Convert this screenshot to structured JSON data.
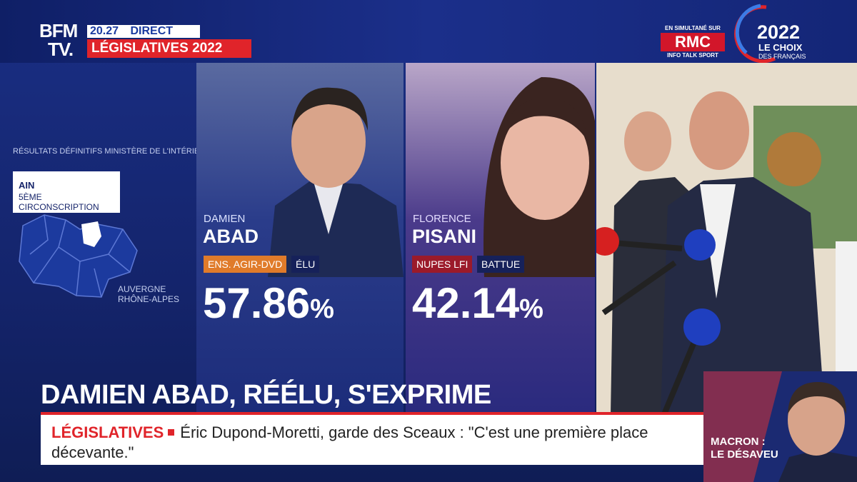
{
  "header": {
    "channel_line1": "BFM",
    "channel_line2": "TV.",
    "time": "20.27",
    "live": "DIRECT",
    "program": "LÉGISLATIVES 2022",
    "simulcast_note": "EN SIMULTANÉ SUR",
    "radio": "RMC",
    "radio_tagline": "INFO TALK SPORT",
    "event_year": "2022",
    "event_line1": "LE CHOIX",
    "event_line2": "DES FRANÇAIS"
  },
  "results": {
    "source": "RÉSULTATS DÉFINITIFS MINISTÈRE DE L'INTÉRIEUR",
    "department": "AIN",
    "constituency": "5ÈME CIRCONSCRIPTION",
    "region_line1": "AUVERGNE",
    "region_line2": "RHÔNE-ALPES",
    "candidates": [
      {
        "first_name": "DAMIEN",
        "last_name": "ABAD",
        "party": "ENS. AGIR-DVD",
        "status": "ÉLU",
        "score": "57.86",
        "unit": "%"
      },
      {
        "first_name": "FLORENCE",
        "last_name": "PISANI",
        "party": "NUPES LFI",
        "status": "BATTUE",
        "score": "42.14",
        "unit": "%"
      }
    ]
  },
  "headline": "DAMIEN ABAD, RÉÉLU, S'EXPRIME",
  "ticker": {
    "label": "LÉGISLATIVES",
    "text": "Éric Dupond-Moretti, garde des Sceaux : \"C'est une première place décevante.\""
  },
  "inset": {
    "line1": "MACRON :",
    "line2": "LE DÉSAVEU"
  }
}
